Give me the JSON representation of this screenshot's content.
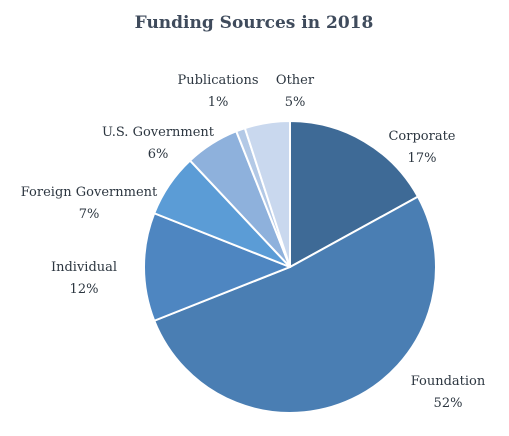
{
  "chart_data": {
    "type": "pie",
    "title": "Funding Sources in 2018",
    "start_angle_deg": 0,
    "direction": "clockwise",
    "slices": [
      {
        "name": "Corporate",
        "value": 17,
        "label": "17%",
        "color": "#3e6a96"
      },
      {
        "name": "Foundation",
        "value": 52,
        "label": "52%",
        "color": "#4a7eb3"
      },
      {
        "name": "Individual",
        "value": 12,
        "label": "12%",
        "color": "#4e86c1"
      },
      {
        "name": "Foreign Government",
        "value": 7,
        "label": "7%",
        "color": "#5b9cd6"
      },
      {
        "name": "U.S. Government",
        "value": 6,
        "label": "6%",
        "color": "#8eb1dc"
      },
      {
        "name": "Publications",
        "value": 1,
        "label": "1%",
        "color": "#b3c9e6"
      },
      {
        "name": "Other",
        "value": 5,
        "label": "5%",
        "color": "#c9d8ee"
      }
    ]
  }
}
